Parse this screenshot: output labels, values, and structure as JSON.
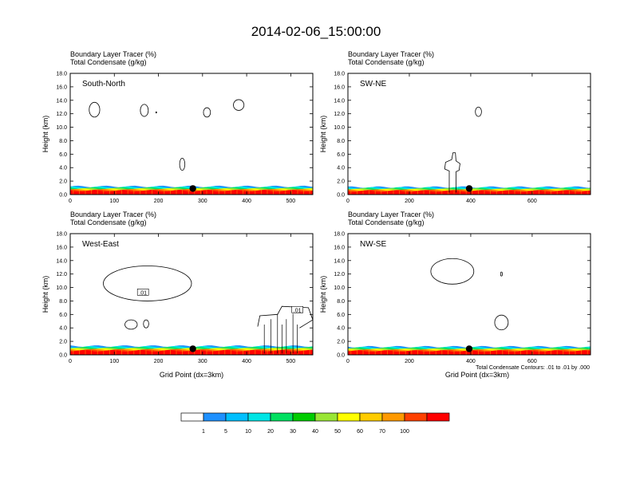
{
  "title": "2014-02-06_15:00:00",
  "chart_data": [
    {
      "type": "contour",
      "panel_label": "South-North",
      "title_lines": [
        "Boundary Layer Tracer   (%)",
        "Total Condensate   (g/kg)"
      ],
      "ylabel": "Height (km)",
      "xlabel": "",
      "xlim": [
        0,
        550
      ],
      "ylim": [
        0,
        18
      ],
      "xticks": [
        0,
        100,
        200,
        300,
        400,
        500
      ],
      "yticks": [
        "0.0",
        "2.0",
        "4.0",
        "6.0",
        "8.0",
        "10.0",
        "12.0",
        "14.0",
        "16.0",
        "18.0"
      ],
      "marker_x": 278,
      "boundary_layer_top_km": 1.2
    },
    {
      "type": "contour",
      "panel_label": "SW-NE",
      "title_lines": [
        "Boundary Layer Tracer   (%)",
        "Total Condensate   (g/kg)"
      ],
      "ylabel": "Height (km)",
      "xlabel": "",
      "xlim": [
        0,
        790
      ],
      "ylim": [
        0,
        18
      ],
      "xticks": [
        0,
        200,
        400,
        600
      ],
      "yticks": [
        "0.0",
        "2.0",
        "4.0",
        "6.0",
        "8.0",
        "10.0",
        "12.0",
        "14.0",
        "16.0",
        "18.0"
      ],
      "marker_x": 395,
      "boundary_layer_top_km": 1.1
    },
    {
      "type": "contour",
      "panel_label": "West-East",
      "title_lines": [
        "Boundary Layer Tracer   (%)",
        "Total Condensate   (g/kg)"
      ],
      "ylabel": "Height (km)",
      "xlabel": "Grid Point (dx=3km)",
      "xlim": [
        0,
        550
      ],
      "ylim": [
        0,
        18
      ],
      "xticks": [
        0,
        100,
        200,
        300,
        400,
        500
      ],
      "yticks": [
        "0.0",
        "2.0",
        "4.0",
        "6.0",
        "8.0",
        "10.0",
        "12.0",
        "14.0",
        "16.0",
        "18.0"
      ],
      "marker_x": 278,
      "boundary_layer_top_km": 1.3,
      "contour_labels": [
        ".01",
        ".01"
      ]
    },
    {
      "type": "contour",
      "panel_label": "NW-SE",
      "title_lines": [
        "Boundary Layer Tracer   (%)",
        "Total Condensate   (g/kg)"
      ],
      "ylabel": "Height (km)",
      "xlabel": "Grid Point (dx=3km)",
      "xlim": [
        0,
        790
      ],
      "ylim": [
        0,
        18
      ],
      "xticks": [
        0,
        200,
        400,
        600
      ],
      "yticks": [
        "0.0",
        "2.0",
        "4.0",
        "6.0",
        "8.0",
        "10.0",
        "12.0",
        "14.0",
        "16.0",
        "18.0"
      ],
      "marker_x": 395,
      "boundary_layer_top_km": 1.2,
      "footnote": "Total Condensate Contours: .01 to .01 by .000"
    }
  ],
  "colorbar": {
    "ticks": [
      "1",
      "5",
      "10",
      "20",
      "30",
      "40",
      "50",
      "60",
      "70",
      "100"
    ],
    "colors": [
      "#ffffff",
      "#1e90ff",
      "#00bfff",
      "#00e5e5",
      "#00e060",
      "#00cc00",
      "#99e635",
      "#ffff00",
      "#ffcc00",
      "#ff9900",
      "#ff4000",
      "#ff0000"
    ]
  }
}
